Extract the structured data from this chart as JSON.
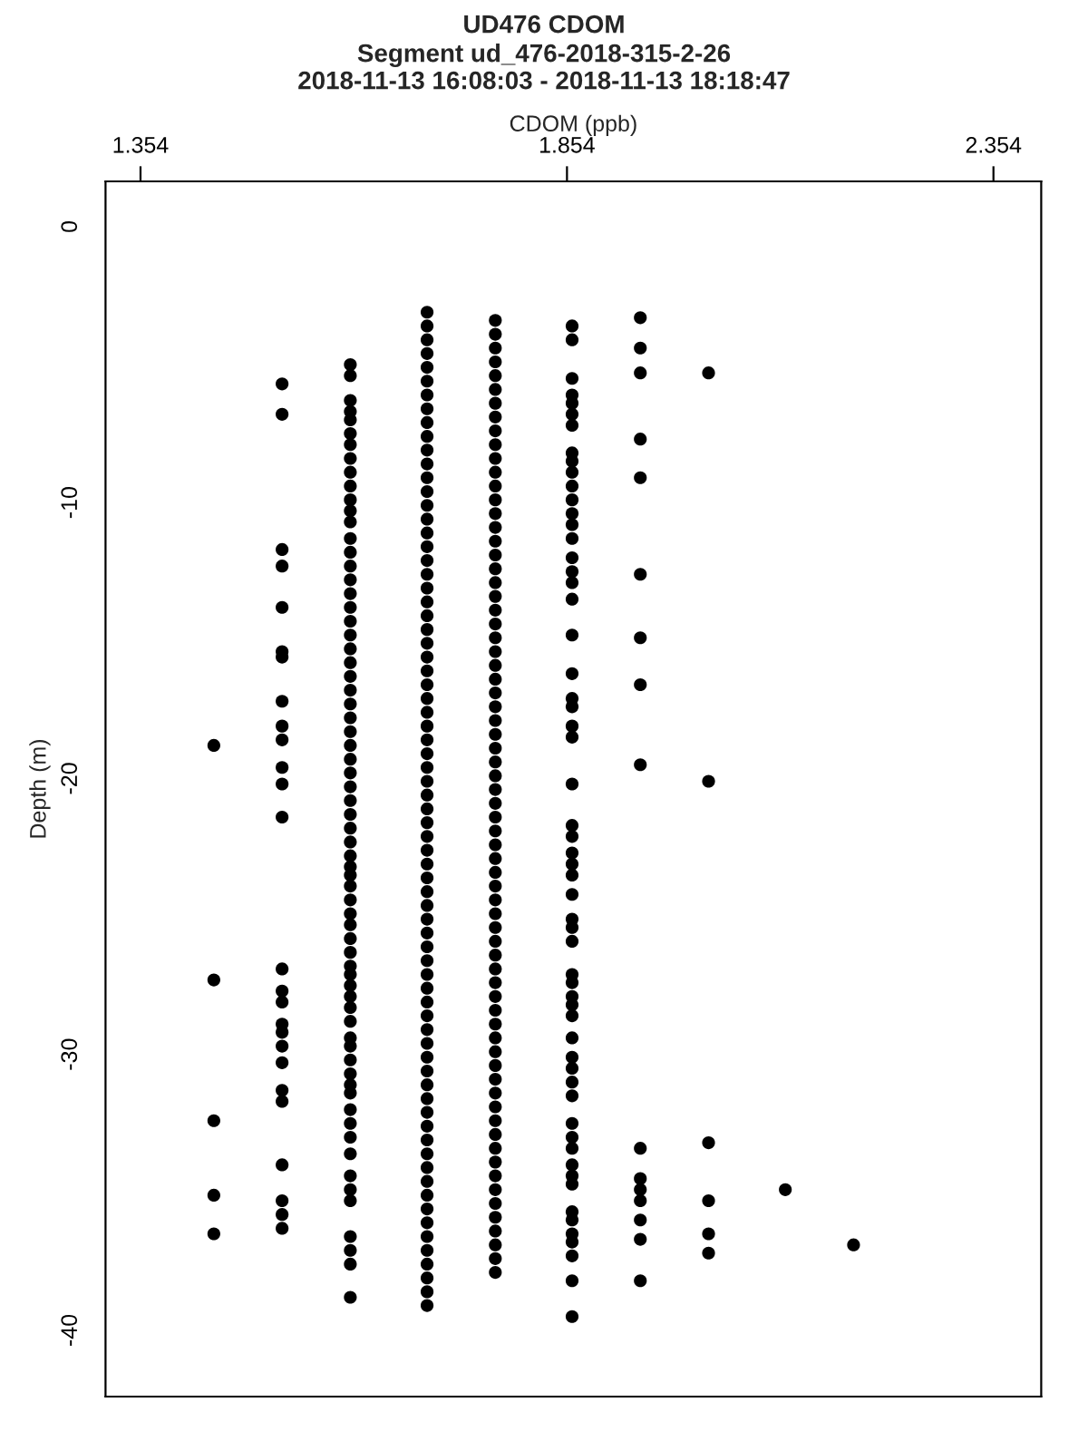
{
  "chart_data": {
    "type": "scatter",
    "title": "UD476 CDOM",
    "subtitle": "Segment ud_476-2018-315-2-26\n2018-11-13 16:08:03 - 2018-11-13 18:18:47",
    "xlabel": "CDOM (ppb)",
    "ylabel": "Depth (m)",
    "xlim": [
      1.313,
      2.41
    ],
    "xticks": [
      1.354,
      1.854,
      2.354
    ],
    "ylim": [
      -42.4,
      1.64
    ],
    "yticks": [
      0,
      -10,
      -20,
      -30,
      -40
    ],
    "grid": false,
    "marker": "circle",
    "series": [
      {
        "color": "#000000",
        "x": [
          1.44,
          1.44,
          1.44,
          1.44,
          1.44
        ],
        "values": [
          -18.8,
          -27.3,
          -32.4,
          -35.1,
          -36.5
        ]
      },
      {
        "color": "#000000",
        "x": [
          1.52,
          1.52,
          1.52,
          1.52,
          1.52,
          1.52,
          1.52,
          1.52,
          1.52,
          1.52,
          1.52,
          1.52,
          1.52,
          1.52,
          1.52,
          1.52,
          1.52,
          1.52,
          1.52,
          1.52,
          1.52,
          1.52,
          1.52,
          1.52,
          1.52,
          1.52
        ],
        "values": [
          -5.7,
          -6.8,
          -11.7,
          -12.3,
          -13.8,
          -15.4,
          -15.6,
          -17.2,
          -18.1,
          -18.6,
          -19.6,
          -20.2,
          -21.4,
          -26.9,
          -27.7,
          -28.1,
          -28.9,
          -29.2,
          -29.7,
          -30.3,
          -31.3,
          -31.7,
          -34.0,
          -35.3,
          -35.8,
          -36.3
        ]
      },
      {
        "color": "#000000",
        "x": [
          1.6,
          1.6,
          1.6,
          1.6,
          1.6,
          1.6,
          1.6,
          1.6,
          1.6,
          1.6,
          1.6,
          1.6,
          1.6,
          1.6,
          1.6,
          1.6,
          1.6,
          1.6,
          1.6,
          1.6,
          1.6,
          1.6,
          1.6,
          1.6,
          1.6,
          1.6,
          1.6,
          1.6,
          1.6,
          1.6,
          1.6,
          1.6,
          1.6,
          1.6,
          1.6,
          1.6,
          1.6,
          1.6,
          1.6,
          1.6,
          1.6,
          1.6,
          1.6,
          1.6,
          1.6,
          1.6,
          1.6,
          1.6,
          1.6,
          1.6,
          1.6,
          1.6,
          1.6,
          1.6,
          1.6,
          1.6,
          1.6,
          1.6,
          1.6,
          1.6,
          1.6,
          1.6,
          1.6,
          1.6,
          1.6,
          1.6,
          1.6,
          1.6
        ],
        "values": [
          -5.0,
          -5.4,
          -6.3,
          -6.7,
          -7.0,
          -7.5,
          -7.9,
          -8.4,
          -8.9,
          -9.4,
          -9.9,
          -10.3,
          -10.7,
          -11.3,
          -11.8,
          -12.3,
          -12.8,
          -13.3,
          -13.8,
          -14.3,
          -14.8,
          -15.3,
          -15.8,
          -16.3,
          -16.8,
          -17.3,
          -17.8,
          -18.3,
          -18.8,
          -19.3,
          -19.8,
          -20.3,
          -20.8,
          -21.3,
          -21.8,
          -22.3,
          -22.8,
          -23.2,
          -23.5,
          -23.9,
          -24.4,
          -24.9,
          -25.3,
          -25.8,
          -26.3,
          -26.8,
          -27.1,
          -27.5,
          -27.9,
          -28.3,
          -28.8,
          -29.4,
          -29.7,
          -30.2,
          -30.7,
          -31.1,
          -31.4,
          -32.0,
          -32.5,
          -33.0,
          -33.6,
          -34.4,
          -34.9,
          -35.3,
          -36.6,
          -37.1,
          -37.6,
          -38.8
        ]
      },
      {
        "color": "#000000",
        "x": [
          1.69,
          1.69,
          1.69,
          1.69,
          1.69,
          1.69,
          1.69,
          1.69,
          1.69,
          1.69,
          1.69,
          1.69,
          1.69,
          1.69,
          1.69,
          1.69,
          1.69,
          1.69,
          1.69,
          1.69,
          1.69,
          1.69,
          1.69,
          1.69,
          1.69,
          1.69,
          1.69,
          1.69,
          1.69,
          1.69,
          1.69,
          1.69,
          1.69,
          1.69,
          1.69,
          1.69,
          1.69,
          1.69,
          1.69,
          1.69,
          1.69,
          1.69,
          1.69,
          1.69,
          1.69,
          1.69,
          1.69,
          1.69,
          1.69,
          1.69,
          1.69,
          1.69,
          1.69,
          1.69,
          1.69,
          1.69,
          1.69,
          1.69,
          1.69,
          1.69,
          1.69,
          1.69,
          1.69,
          1.69,
          1.69,
          1.69,
          1.69,
          1.69,
          1.69,
          1.69,
          1.69,
          1.69,
          1.69
        ],
        "values": [
          -3.1,
          -3.6,
          -4.1,
          -4.6,
          -5.1,
          -5.6,
          -6.1,
          -6.6,
          -7.1,
          -7.6,
          -8.1,
          -8.6,
          -9.1,
          -9.6,
          -10.1,
          -10.6,
          -11.1,
          -11.6,
          -12.1,
          -12.6,
          -13.1,
          -13.6,
          -14.1,
          -14.6,
          -15.1,
          -15.6,
          -16.1,
          -16.6,
          -17.1,
          -17.6,
          -18.1,
          -18.6,
          -19.1,
          -19.6,
          -20.1,
          -20.6,
          -21.1,
          -21.6,
          -22.1,
          -22.6,
          -23.1,
          -23.6,
          -24.1,
          -24.6,
          -25.1,
          -25.6,
          -26.1,
          -26.6,
          -27.1,
          -27.6,
          -28.1,
          -28.6,
          -29.1,
          -29.6,
          -30.1,
          -30.6,
          -31.1,
          -31.6,
          -32.1,
          -32.6,
          -33.1,
          -33.6,
          -34.1,
          -34.6,
          -35.1,
          -35.6,
          -36.1,
          -36.6,
          -37.1,
          -37.6,
          -38.1,
          -38.6,
          -39.1
        ]
      },
      {
        "color": "#000000",
        "x": [
          1.77,
          1.77,
          1.77,
          1.77,
          1.77,
          1.77,
          1.77,
          1.77,
          1.77,
          1.77,
          1.77,
          1.77,
          1.77,
          1.77,
          1.77,
          1.77,
          1.77,
          1.77,
          1.77,
          1.77,
          1.77,
          1.77,
          1.77,
          1.77,
          1.77,
          1.77,
          1.77,
          1.77,
          1.77,
          1.77,
          1.77,
          1.77,
          1.77,
          1.77,
          1.77,
          1.77,
          1.77,
          1.77,
          1.77,
          1.77,
          1.77,
          1.77,
          1.77,
          1.77,
          1.77,
          1.77,
          1.77,
          1.77,
          1.77,
          1.77,
          1.77,
          1.77,
          1.77,
          1.77,
          1.77,
          1.77,
          1.77,
          1.77,
          1.77,
          1.77,
          1.77,
          1.77,
          1.77,
          1.77,
          1.77,
          1.77,
          1.77,
          1.77,
          1.77,
          1.77
        ],
        "values": [
          -3.4,
          -3.9,
          -4.4,
          -4.9,
          -5.4,
          -5.9,
          -6.4,
          -6.9,
          -7.4,
          -7.9,
          -8.4,
          -8.9,
          -9.4,
          -9.9,
          -10.4,
          -10.9,
          -11.4,
          -11.9,
          -12.4,
          -12.9,
          -13.4,
          -13.9,
          -14.4,
          -14.9,
          -15.4,
          -15.9,
          -16.4,
          -16.9,
          -17.4,
          -17.9,
          -18.4,
          -18.9,
          -19.4,
          -19.9,
          -20.4,
          -20.9,
          -21.4,
          -21.9,
          -22.4,
          -22.9,
          -23.4,
          -23.9,
          -24.4,
          -24.9,
          -25.4,
          -25.9,
          -26.4,
          -26.9,
          -27.4,
          -27.9,
          -28.4,
          -28.9,
          -29.4,
          -29.9,
          -30.4,
          -30.9,
          -31.4,
          -31.9,
          -32.4,
          -32.9,
          -33.4,
          -33.9,
          -34.4,
          -34.9,
          -35.4,
          -35.9,
          -36.4,
          -36.9,
          -37.4,
          -37.9
        ]
      },
      {
        "color": "#000000",
        "x": [
          1.86,
          1.86,
          1.86,
          1.86,
          1.86,
          1.86,
          1.86,
          1.86,
          1.86,
          1.86,
          1.86,
          1.86,
          1.86,
          1.86,
          1.86,
          1.86,
          1.86,
          1.86,
          1.86,
          1.86,
          1.86,
          1.86,
          1.86,
          1.86,
          1.86,
          1.86,
          1.86,
          1.86,
          1.86,
          1.86,
          1.86,
          1.86,
          1.86,
          1.86,
          1.86,
          1.86,
          1.86,
          1.86,
          1.86,
          1.86,
          1.86,
          1.86,
          1.86,
          1.86,
          1.86,
          1.86,
          1.86,
          1.86,
          1.86,
          1.86,
          1.86,
          1.86,
          1.86,
          1.86,
          1.86,
          1.86,
          1.86,
          1.86
        ],
        "values": [
          -3.6,
          -4.1,
          -5.5,
          -6.1,
          -6.4,
          -6.8,
          -7.2,
          -8.2,
          -8.5,
          -8.9,
          -9.4,
          -9.9,
          -10.4,
          -10.8,
          -11.3,
          -12.0,
          -12.5,
          -12.9,
          -13.5,
          -14.8,
          -16.2,
          -17.1,
          -17.4,
          -18.1,
          -18.5,
          -20.2,
          -21.7,
          -22.1,
          -22.7,
          -23.1,
          -23.5,
          -24.2,
          -25.1,
          -25.4,
          -25.9,
          -27.1,
          -27.4,
          -27.9,
          -28.2,
          -28.6,
          -29.4,
          -30.1,
          -30.5,
          -31.0,
          -31.5,
          -32.5,
          -33.0,
          -33.4,
          -34.0,
          -34.4,
          -34.7,
          -35.7,
          -36.0,
          -36.5,
          -36.8,
          -37.3,
          -38.2,
          -39.5
        ]
      },
      {
        "color": "#000000",
        "x": [
          1.94,
          1.94,
          1.94,
          1.94,
          1.94,
          1.94,
          1.94,
          1.94,
          1.94,
          1.94,
          1.94,
          1.94,
          1.94,
          1.94,
          1.94,
          1.94
        ],
        "values": [
          -3.3,
          -4.4,
          -5.3,
          -7.7,
          -9.1,
          -12.6,
          -14.9,
          -16.6,
          -19.5,
          -33.4,
          -34.5,
          -34.9,
          -35.3,
          -36.0,
          -36.7,
          -38.2
        ]
      },
      {
        "color": "#000000",
        "x": [
          2.02,
          2.02,
          2.02,
          2.02,
          2.02,
          2.02
        ],
        "values": [
          -5.3,
          -20.1,
          -33.2,
          -35.3,
          -36.5,
          -37.2
        ]
      },
      {
        "color": "#000000",
        "x": [
          2.11
        ],
        "values": [
          -34.9
        ]
      },
      {
        "color": "#000000",
        "x": [
          2.19
        ],
        "values": [
          -36.9
        ]
      }
    ]
  }
}
